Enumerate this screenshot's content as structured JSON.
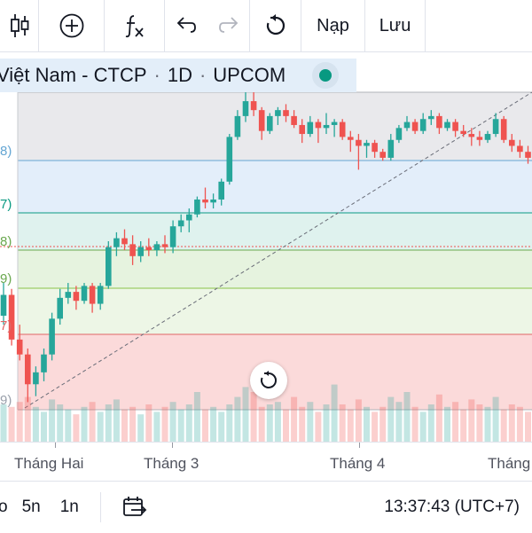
{
  "toolbar": {
    "indicators_icon": "candlestick-icon",
    "add_icon": "plus-circle-icon",
    "formula_icon": "fx-icon",
    "undo_icon": "undo-icon",
    "redo_icon": "redo-icon",
    "reset_icon": "reset-icon",
    "load_label": "Nạp",
    "save_label": "Lưu"
  },
  "symbol": {
    "name": "Việt Nam - CTCP",
    "interval": "1D",
    "exchange": "UPCOM",
    "sep": "·"
  },
  "price_labels": [
    "3)",
    "8)",
    "7)",
    "8)",
    "9)",
    "7)",
    "9)"
  ],
  "time_axis": [
    "Tháng Hai",
    "Tháng 3",
    "Tháng 4",
    "Tháng"
  ],
  "bottom": {
    "range_partial": "o",
    "range_5y": "5n",
    "range_1y": "1n",
    "time": "13:37:43 (UTC+7)"
  },
  "colors": {
    "up": "#26a69a",
    "down": "#ef5350",
    "line_teal": "#089981"
  },
  "chart_data": {
    "type": "candlestick",
    "title": "",
    "xlabel": "",
    "ylabel": "",
    "candles": [
      [
        0.25,
        0.36,
        0.22,
        0.32
      ],
      [
        0.32,
        0.34,
        0.15,
        0.17
      ],
      [
        0.17,
        0.22,
        0.1,
        0.12
      ],
      [
        0.12,
        0.14,
        -0.04,
        0.02
      ],
      [
        0.02,
        0.08,
        -0.02,
        0.06
      ],
      [
        0.06,
        0.14,
        0.03,
        0.12
      ],
      [
        0.12,
        0.26,
        0.1,
        0.24
      ],
      [
        0.24,
        0.34,
        0.22,
        0.31
      ],
      [
        0.31,
        0.36,
        0.29,
        0.33
      ],
      [
        0.33,
        0.35,
        0.27,
        0.3
      ],
      [
        0.3,
        0.36,
        0.29,
        0.35
      ],
      [
        0.35,
        0.36,
        0.26,
        0.29
      ],
      [
        0.29,
        0.36,
        0.27,
        0.35
      ],
      [
        0.35,
        0.5,
        0.34,
        0.48
      ],
      [
        0.48,
        0.53,
        0.45,
        0.51
      ],
      [
        0.51,
        0.54,
        0.47,
        0.49
      ],
      [
        0.49,
        0.52,
        0.42,
        0.45
      ],
      [
        0.45,
        0.5,
        0.43,
        0.48
      ],
      [
        0.48,
        0.51,
        0.45,
        0.47
      ],
      [
        0.47,
        0.5,
        0.45,
        0.49
      ],
      [
        0.49,
        0.52,
        0.46,
        0.48
      ],
      [
        0.48,
        0.57,
        0.46,
        0.55
      ],
      [
        0.55,
        0.59,
        0.53,
        0.57
      ],
      [
        0.57,
        0.61,
        0.53,
        0.59
      ],
      [
        0.59,
        0.65,
        0.58,
        0.64
      ],
      [
        0.64,
        0.68,
        0.61,
        0.63
      ],
      [
        0.63,
        0.66,
        0.61,
        0.64
      ],
      [
        0.64,
        0.71,
        0.62,
        0.7
      ],
      [
        0.7,
        0.86,
        0.69,
        0.85
      ],
      [
        0.85,
        0.94,
        0.84,
        0.92
      ],
      [
        0.92,
        1.04,
        0.9,
        0.97
      ],
      [
        0.97,
        1.0,
        0.92,
        0.94
      ],
      [
        0.94,
        0.95,
        0.84,
        0.87
      ],
      [
        0.87,
        0.93,
        0.86,
        0.92
      ],
      [
        0.92,
        0.95,
        0.89,
        0.94
      ],
      [
        0.94,
        0.96,
        0.9,
        0.92
      ],
      [
        0.92,
        0.94,
        0.88,
        0.89
      ],
      [
        0.89,
        0.91,
        0.83,
        0.86
      ],
      [
        0.86,
        0.92,
        0.85,
        0.9
      ],
      [
        0.9,
        0.91,
        0.83,
        0.88
      ],
      [
        0.88,
        0.93,
        0.86,
        0.89
      ],
      [
        0.89,
        0.91,
        0.85,
        0.9
      ],
      [
        0.9,
        0.91,
        0.84,
        0.85
      ],
      [
        0.85,
        0.87,
        0.8,
        0.84
      ],
      [
        0.84,
        0.86,
        0.74,
        0.82
      ],
      [
        0.82,
        0.84,
        0.78,
        0.83
      ],
      [
        0.83,
        0.84,
        0.78,
        0.8
      ],
      [
        0.8,
        0.81,
        0.77,
        0.78
      ],
      [
        0.78,
        0.86,
        0.77,
        0.84
      ],
      [
        0.84,
        0.89,
        0.83,
        0.88
      ],
      [
        0.88,
        0.92,
        0.87,
        0.9
      ],
      [
        0.9,
        0.91,
        0.86,
        0.87
      ],
      [
        0.87,
        0.93,
        0.86,
        0.91
      ],
      [
        0.91,
        0.94,
        0.89,
        0.92
      ],
      [
        0.92,
        0.93,
        0.86,
        0.88
      ],
      [
        0.88,
        0.91,
        0.87,
        0.9
      ],
      [
        0.9,
        0.91,
        0.85,
        0.87
      ],
      [
        0.87,
        0.89,
        0.85,
        0.86
      ],
      [
        0.86,
        0.88,
        0.82,
        0.85
      ],
      [
        0.85,
        0.87,
        0.82,
        0.84
      ],
      [
        0.84,
        0.87,
        0.83,
        0.86
      ],
      [
        0.86,
        0.93,
        0.85,
        0.91
      ],
      [
        0.91,
        0.92,
        0.83,
        0.84
      ],
      [
        0.84,
        0.86,
        0.8,
        0.82
      ],
      [
        0.82,
        0.84,
        0.78,
        0.8
      ],
      [
        0.8,
        0.82,
        0.76,
        0.78
      ],
      [
        0.78,
        0.8,
        0.67,
        0.69
      ],
      [
        0.69,
        0.73,
        0.62,
        0.71
      ],
      [
        0.71,
        0.74,
        0.61,
        0.63
      ]
    ],
    "volume": [
      0.3,
      0.28,
      0.32,
      0.36,
      0.28,
      0.24,
      0.34,
      0.3,
      0.26,
      0.22,
      0.28,
      0.32,
      0.24,
      0.3,
      0.34,
      0.26,
      0.28,
      0.22,
      0.3,
      0.24,
      0.28,
      0.32,
      0.26,
      0.3,
      0.4,
      0.26,
      0.28,
      0.24,
      0.3,
      0.36,
      0.44,
      0.4,
      0.28,
      0.3,
      0.32,
      0.26,
      0.36,
      0.28,
      0.32,
      0.24,
      0.3,
      0.46,
      0.3,
      0.26,
      0.34,
      0.28,
      0.24,
      0.28,
      0.36,
      0.32,
      0.4,
      0.28,
      0.24,
      0.3,
      0.38,
      0.28,
      0.32,
      0.26,
      0.34,
      0.3,
      0.28,
      0.36,
      0.26,
      0.3,
      0.28,
      0.24,
      0.32,
      0.26,
      0.3
    ]
  }
}
